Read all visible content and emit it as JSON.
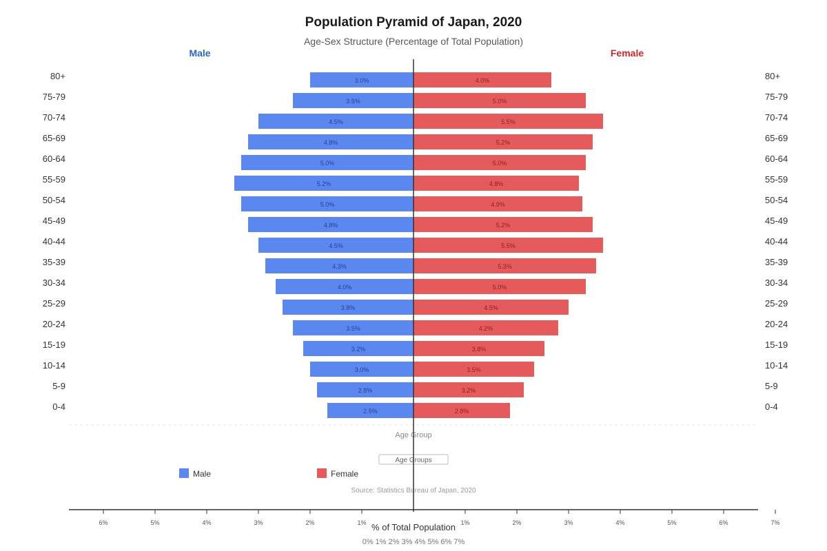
{
  "title": "Population Pyramid of Japan, 2020",
  "subtitle": "Age-Sex Structure (Percentage of Total Population)",
  "source": "Source: Statistics Bureau of Japan, 2020",
  "colors": {
    "male": "#5b87f0",
    "female": "#e55b5b",
    "male_header": "#2a66cc",
    "female_header": "#cc2a2a"
  },
  "chart_data": {
    "type": "bar",
    "orientation": "horizontal-pyramid",
    "categories": [
      "80+",
      "75-79",
      "70-74",
      "65-69",
      "60-64",
      "55-59",
      "50-54",
      "45-49",
      "40-44",
      "35-39",
      "30-34",
      "25-29",
      "20-24",
      "15-19",
      "10-14",
      "5-9",
      "0-4"
    ],
    "series": [
      {
        "name": "Male",
        "values": [
          3.0,
          3.5,
          4.5,
          4.8,
          5.0,
          5.2,
          5.0,
          4.8,
          4.5,
          4.3,
          4.0,
          3.8,
          3.5,
          3.2,
          3.0,
          2.8,
          2.5
        ],
        "labels": [
          "3.0%",
          "3.5%",
          "4.5%",
          "4.8%",
          "5.0%",
          "5.2%",
          "5.0%",
          "4.8%",
          "4.5%",
          "4.3%",
          "4.0%",
          "3.8%",
          "3.5%",
          "3.2%",
          "3.0%",
          "2.8%",
          "2.5%"
        ]
      },
      {
        "name": "Female",
        "values": [
          4.0,
          5.0,
          5.5,
          5.2,
          5.0,
          4.8,
          4.9,
          5.2,
          5.5,
          5.3,
          5.0,
          4.5,
          4.2,
          3.8,
          3.5,
          3.2,
          2.8
        ],
        "labels": [
          "4.0%",
          "5.0%",
          "5.5%",
          "5.2%",
          "5.0%",
          "4.8%",
          "4.9%",
          "5.2%",
          "5.5%",
          "5.3%",
          "5.0%",
          "4.5%",
          "4.2%",
          "3.8%",
          "3.5%",
          "3.2%",
          "2.8%"
        ]
      }
    ],
    "side_headers": {
      "left": "Male",
      "right": "Female"
    },
    "y_axis_label": "Age Group",
    "y_axis_box_label": "Age Groups",
    "xlabel": "% of Total Population",
    "x_ticks_left": [
      {
        "value": 6,
        "label": "6%"
      },
      {
        "value": 5,
        "label": "5%"
      },
      {
        "value": 4,
        "label": "4%"
      },
      {
        "value": 3,
        "label": "3%"
      },
      {
        "value": 2,
        "label": "2%"
      },
      {
        "value": 1,
        "label": "1%"
      }
    ],
    "x_ticks_right": [
      {
        "value": 1,
        "label": "1%"
      },
      {
        "value": 2,
        "label": "2%"
      },
      {
        "value": 3,
        "label": "3%"
      },
      {
        "value": 4,
        "label": "4%"
      },
      {
        "value": 5,
        "label": "5%"
      },
      {
        "value": 6,
        "label": "6%"
      },
      {
        "value": 7,
        "label": "7%"
      }
    ],
    "x_tick_text_row": "0% 1% 2% 3% 4% 5% 6% 7%",
    "legend": [
      {
        "name": "Male"
      },
      {
        "name": "Female"
      }
    ],
    "legend_position": "bottom-left",
    "grid": false
  }
}
